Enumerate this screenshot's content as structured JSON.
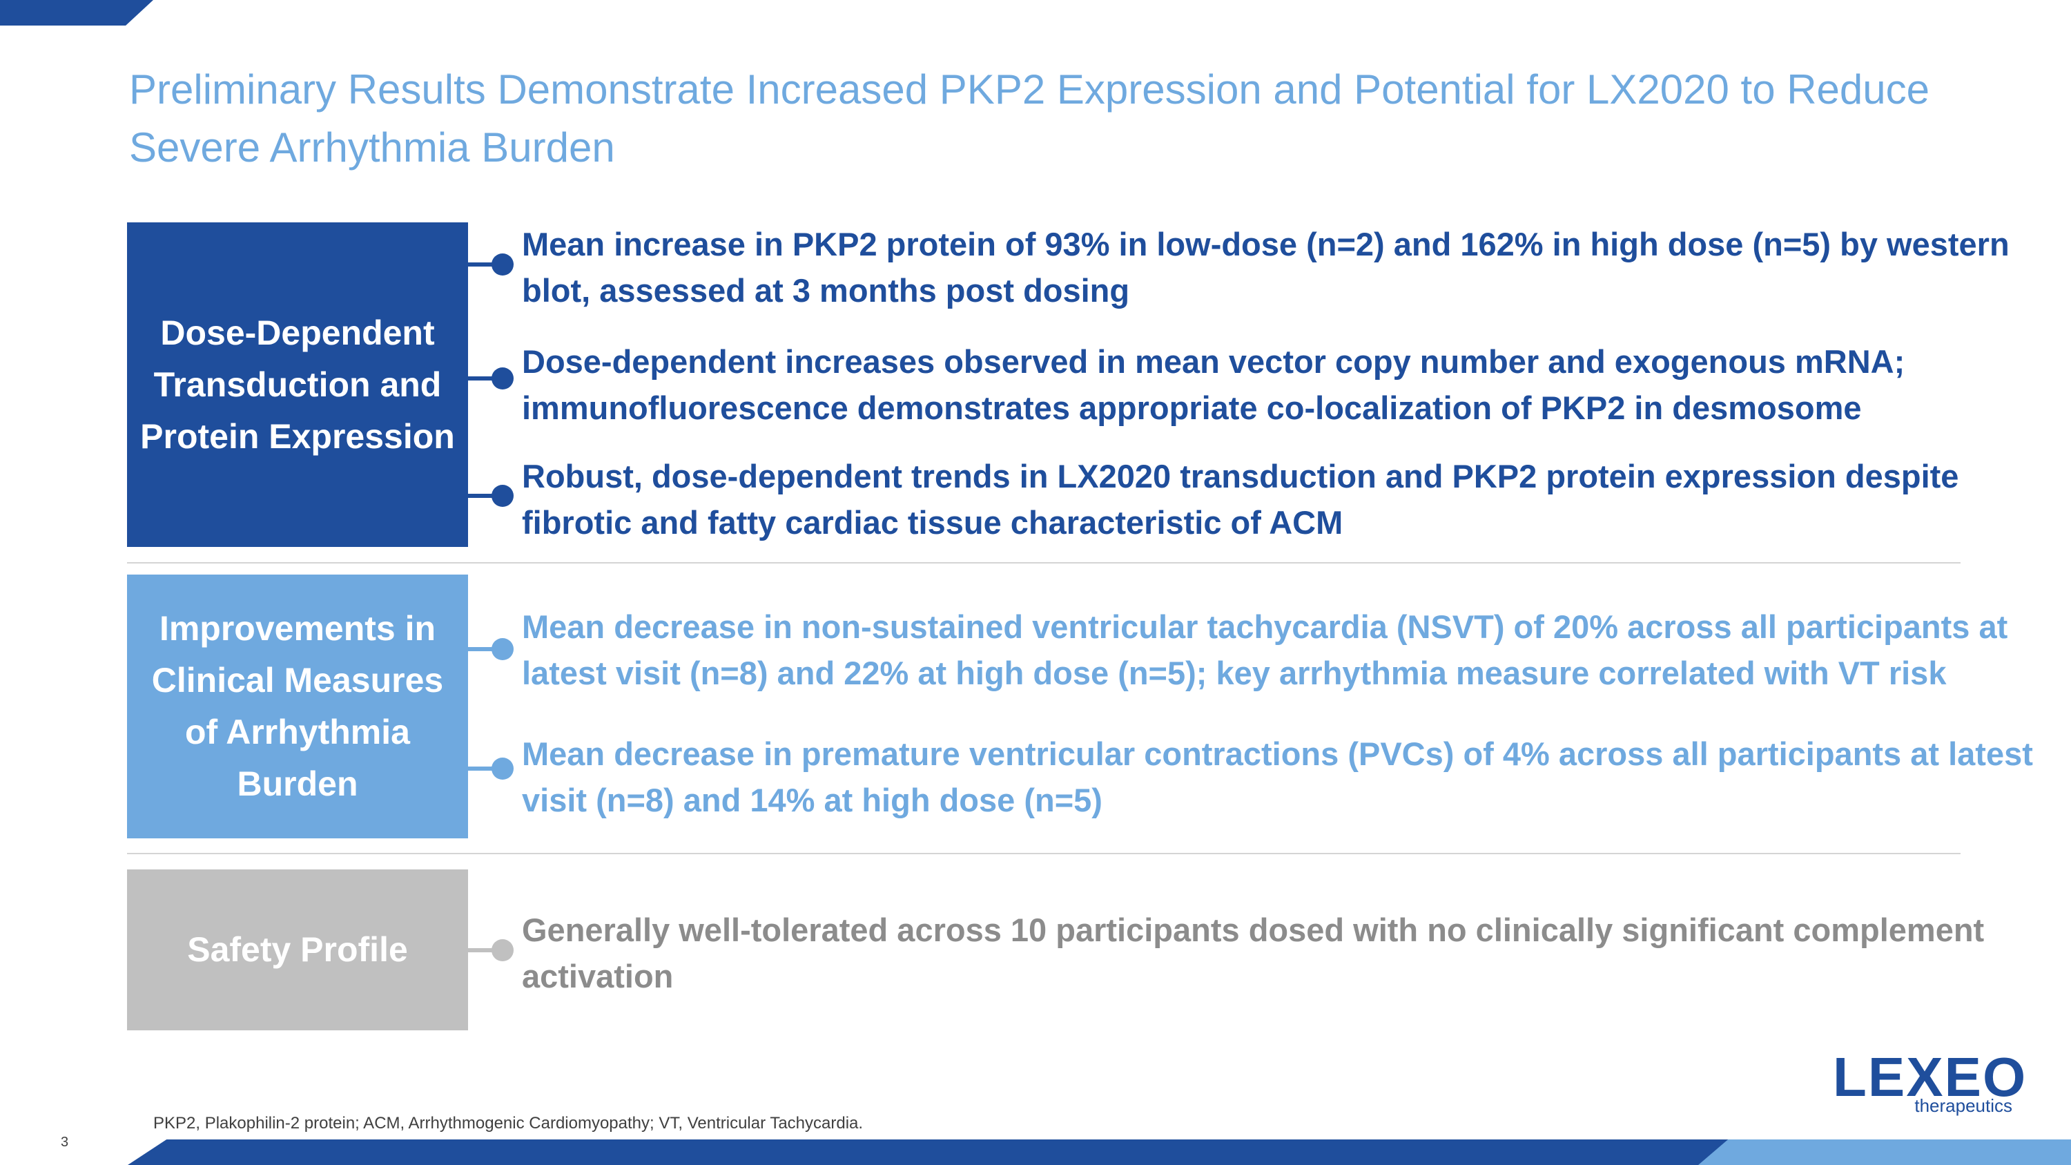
{
  "title": "Preliminary Results Demonstrate Increased PKP2 Expression and Potential for LX2020 to Reduce Severe Arrhythmia Burden",
  "sections": [
    {
      "label": "Dose-Dependent Transduction and Protein Expression",
      "bullets": [
        "Mean increase in PKP2 protein of 93% in low-dose (n=2) and 162% in high dose (n=5) by western blot, assessed at 3 months post dosing",
        "Dose-dependent increases observed in mean vector copy number and exogenous mRNA; immunofluorescence demonstrates appropriate co-localization of PKP2 in desmosome",
        "Robust, dose-dependent trends in LX2020 transduction and PKP2 protein expression despite fibrotic and fatty cardiac tissue characteristic of ACM"
      ]
    },
    {
      "label": "Improvements in Clinical Measures of Arrhythmia Burden",
      "bullets": [
        "Mean decrease in non-sustained ventricular tachycardia (NSVT) of 20% across all participants at latest visit (n=8) and 22% at high dose (n=5); key arrhythmia measure correlated with VT risk",
        "Mean decrease in premature ventricular contractions (PVCs) of 4% across all participants at latest visit (n=8) and 14% at high dose (n=5)"
      ]
    },
    {
      "label": "Safety Profile",
      "bullets": [
        "Generally well-tolerated across 10 participants dosed with no clinically significant complement activation"
      ]
    }
  ],
  "colors": {
    "dark_blue": "#1f4e9c",
    "light_blue": "#6fa9df",
    "gray": "#c0c0c0",
    "gray_text": "#8c8c8c"
  },
  "logo": {
    "word": "LEXEO",
    "sub": "therapeutics"
  },
  "footnote": "PKP2, Plakophilin-2 protein; ACM, Arrhythmogenic Cardiomyopathy; VT, Ventricular Tachycardia.",
  "page_number": "3"
}
